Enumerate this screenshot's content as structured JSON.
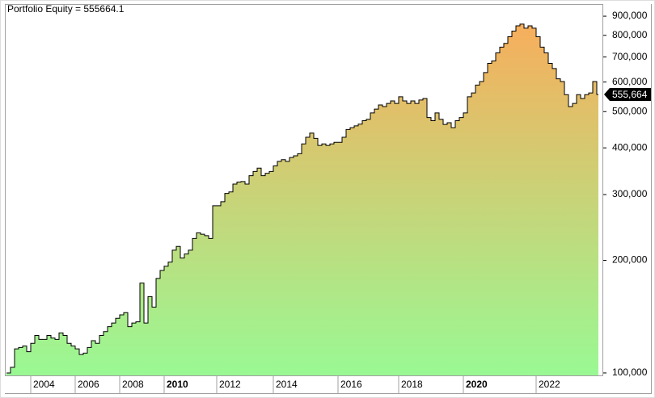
{
  "chart_data": {
    "type": "line",
    "title": "Portfolio Equity = 555664.1",
    "x": [
      0,
      1,
      2,
      3,
      4,
      5,
      6,
      7,
      8,
      9,
      10,
      11,
      12,
      13,
      14,
      15,
      16,
      17,
      18,
      19,
      20,
      21,
      22,
      23,
      24,
      25,
      26,
      27,
      28,
      29,
      30,
      31,
      32,
      33,
      34,
      35,
      36,
      37,
      38,
      39,
      40,
      41,
      42,
      43,
      44,
      45,
      46,
      47,
      48,
      49,
      50,
      51,
      52,
      53,
      54,
      55,
      56,
      57,
      58,
      59,
      60,
      61,
      62,
      63,
      64,
      65,
      66,
      67,
      68,
      69,
      70,
      71,
      72,
      73,
      74,
      75,
      76,
      77,
      78,
      79,
      80,
      81,
      82,
      83,
      84,
      85,
      86,
      87,
      88,
      89,
      90,
      91,
      92,
      93,
      94,
      95,
      96,
      97,
      98,
      99,
      100,
      101,
      102,
      103,
      104,
      105,
      106,
      107,
      108,
      109,
      110,
      111,
      112,
      113,
      114,
      115,
      116,
      117,
      118,
      119,
      120,
      121,
      122,
      123,
      124,
      125,
      126,
      127,
      128,
      129,
      130,
      131,
      132,
      133,
      134,
      135,
      136,
      137,
      138,
      139,
      140,
      141,
      142,
      143,
      144,
      145,
      146
    ],
    "series": [
      {
        "name": "Portfolio Equity",
        "color": "#000000",
        "values": [
          100000,
          103500,
          116000,
          117000,
          118000,
          114000,
          120000,
          126000,
          123000,
          123000,
          126000,
          124000,
          123000,
          128000,
          126000,
          120000,
          118000,
          116000,
          112000,
          113000,
          117000,
          122000,
          120000,
          126000,
          129000,
          133000,
          136000,
          140000,
          143000,
          145000,
          133000,
          136000,
          137000,
          174000,
          136000,
          160000,
          150000,
          179000,
          188000,
          193000,
          198000,
          213000,
          218000,
          203000,
          208000,
          213000,
          229000,
          237000,
          235000,
          233000,
          229000,
          280000,
          280000,
          287000,
          302000,
          305000,
          320000,
          324000,
          325000,
          320000,
          337000,
          346000,
          353000,
          337000,
          342000,
          346000,
          358000,
          368000,
          372000,
          368000,
          377000,
          381000,
          386000,
          410000,
          427000,
          438000,
          424000,
          406000,
          410000,
          406000,
          410000,
          414000,
          414000,
          427000,
          448000,
          453000,
          458000,
          463000,
          473000,
          477000,
          496000,
          508000,
          521000,
          516000,
          526000,
          534000,
          526000,
          548000,
          534000,
          526000,
          534000,
          526000,
          537000,
          542000,
          482000,
          473000,
          496000,
          477000,
          462000,
          467000,
          453000,
          473000,
          482000,
          496000,
          548000,
          561000,
          589000,
          602000,
          636000,
          673000,
          683000,
          718000,
          744000,
          761000,
          793000,
          821000,
          848000,
          857000,
          836000,
          848000,
          836000,
          793000,
          744000,
          718000,
          673000,
          652000,
          612000,
          602000,
          555000,
          516000,
          526000,
          555000,
          542000,
          555000,
          561000,
          602000,
          555664.1
        ],
        "value_labels": [
          null,
          null,
          null,
          null,
          null,
          null,
          null,
          null,
          null,
          null,
          null,
          null,
          null,
          null,
          null,
          null,
          null,
          null,
          null,
          null,
          null,
          null,
          null,
          null,
          null,
          null,
          null,
          null,
          null,
          null,
          null,
          null,
          null,
          null,
          null,
          null,
          null,
          null,
          null,
          null,
          null,
          null,
          null,
          null,
          null,
          null,
          null,
          null,
          null,
          null,
          null,
          null,
          null,
          null,
          null,
          null,
          null,
          null,
          null,
          null,
          null,
          null,
          null,
          null,
          null,
          null,
          null,
          null,
          null,
          null,
          null,
          null,
          null,
          null,
          null,
          null,
          null,
          null,
          null,
          null,
          null,
          null,
          null,
          null,
          null,
          null,
          null,
          null,
          null,
          null,
          null,
          null,
          null,
          null,
          null,
          null,
          null,
          null,
          null,
          null,
          null,
          null,
          null,
          null,
          null,
          null,
          null,
          null,
          null,
          null,
          null,
          null,
          null,
          null,
          null,
          null,
          null,
          null,
          null,
          null,
          null,
          null,
          null,
          null,
          null,
          null,
          null,
          null,
          null,
          null,
          null,
          null,
          null,
          null,
          null,
          null,
          null,
          null,
          null,
          null,
          null,
          null,
          null,
          null,
          null,
          null,
          "555,664"
        ]
      }
    ],
    "xlim": [
      0,
      146
    ],
    "xticks": [
      {
        "value": 6,
        "label": "2004"
      },
      {
        "value": 17,
        "label": "2006"
      },
      {
        "value": 28,
        "label": "2008"
      },
      {
        "value": 39,
        "label": "2010"
      },
      {
        "value": 52,
        "label": "2012"
      },
      {
        "value": 66,
        "label": "2014"
      },
      {
        "value": 82,
        "label": "2016"
      },
      {
        "value": 97,
        "label": "2018"
      },
      {
        "value": 113,
        "label": "2020"
      },
      {
        "value": 131,
        "label": "2022"
      }
    ],
    "ylim": [
      98500,
      970000
    ],
    "log_y": true,
    "yticks": [
      {
        "value": 100000,
        "label": "100,000"
      },
      {
        "value": 200000,
        "label": "200,000"
      },
      {
        "value": 300000,
        "label": "300,000"
      },
      {
        "value": 400000,
        "label": "400,000"
      },
      {
        "value": 500000,
        "label": "500,000"
      },
      {
        "value": 600000,
        "label": "600,000"
      },
      {
        "value": 700000,
        "label": "700,000"
      },
      {
        "value": 800000,
        "label": "800,000"
      },
      {
        "value": 900000,
        "label": "900,000"
      }
    ],
    "fill_colors": [
      "#99f994",
      "#f7ae5c"
    ]
  }
}
